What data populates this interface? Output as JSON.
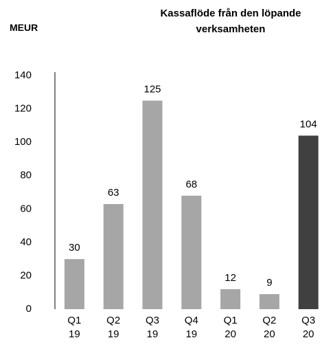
{
  "chart_data": {
    "type": "bar",
    "title": "Kassaflöde från den löpande verksamheten",
    "y_label": "MEUR",
    "categories": [
      "Q1 19",
      "Q2 19",
      "Q3 19",
      "Q4 19",
      "Q1 20",
      "Q2 20",
      "Q3 20"
    ],
    "values": [
      30,
      63,
      125,
      68,
      12,
      9,
      104
    ],
    "colors": [
      "#a6a6a6",
      "#a6a6a6",
      "#a6a6a6",
      "#a6a6a6",
      "#a6a6a6",
      "#a6a6a6",
      "#404040"
    ],
    "ylim": [
      0,
      140
    ],
    "yticks": [
      0,
      20,
      40,
      60,
      80,
      100,
      120,
      140
    ],
    "grid": false
  }
}
